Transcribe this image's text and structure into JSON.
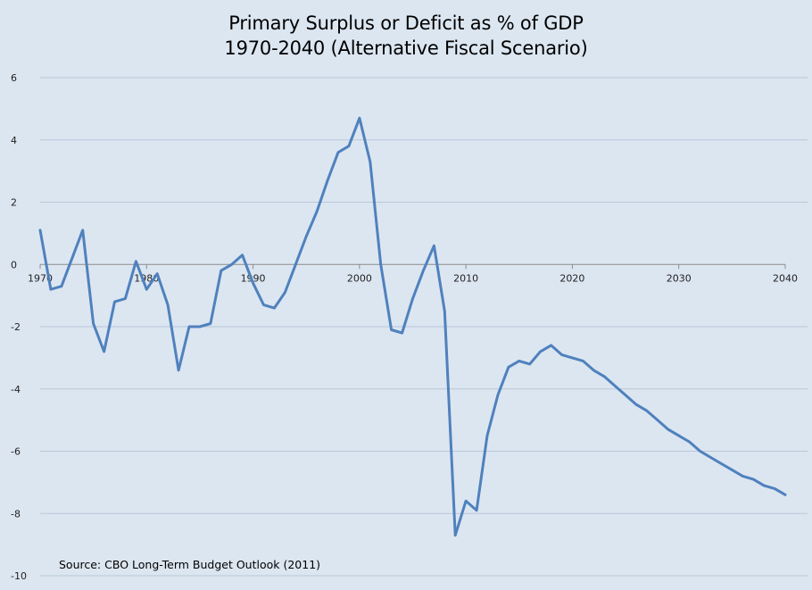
{
  "chart": {
    "title_line1": "Primary Surplus or Deficit as % of GDP",
    "title_line2": "1970-2040 (Alternative Fiscal Scenario)",
    "source": "Source:  CBO Long-Term Budget Outlook (2011)"
  },
  "colors": {
    "background": "#dce6f1",
    "series": "#4f81bd",
    "grid": "#b9c7d8"
  },
  "chart_data": {
    "type": "line",
    "title": "Primary Surplus or Deficit as % of GDP 1970-2040 (Alternative Fiscal Scenario)",
    "xlabel": "",
    "ylabel": "",
    "xlim": [
      1970,
      2040
    ],
    "ylim": [
      -10,
      6
    ],
    "x_ticks": [
      "1970",
      "1980",
      "1990",
      "2000",
      "2010",
      "2020",
      "2030",
      "2040"
    ],
    "y_ticks": [
      "6",
      "4",
      "2",
      "0",
      "-2",
      "-4",
      "-6",
      "-8",
      "-10"
    ],
    "grid": true,
    "legend": "none",
    "series": [
      {
        "x": [
          1970,
          1971,
          1972,
          1973,
          1974,
          1975,
          1976,
          1977,
          1978,
          1979,
          1980,
          1981,
          1982,
          1983,
          1984,
          1985,
          1986,
          1987,
          1988,
          1989,
          1990,
          1991,
          1992,
          1993,
          1994,
          1995,
          1996,
          1997,
          1998,
          1999,
          2000,
          2001,
          2002,
          2003,
          2004,
          2005,
          2006,
          2007,
          2008,
          2009,
          2010,
          2011,
          2012,
          2013,
          2014,
          2015,
          2016,
          2017,
          2018,
          2019,
          2020,
          2021,
          2022,
          2023,
          2024,
          2025,
          2026,
          2027,
          2028,
          2029,
          2030,
          2031,
          2032,
          2033,
          2034,
          2035,
          2036,
          2037,
          2038,
          2039,
          2040
        ],
        "values": [
          1.1,
          -0.8,
          -0.7,
          0.2,
          1.1,
          -1.9,
          -2.8,
          -1.2,
          -1.1,
          0.1,
          -0.8,
          -0.3,
          -1.3,
          -3.4,
          -2.0,
          -2.0,
          -1.9,
          -0.2,
          0.0,
          0.3,
          -0.6,
          -1.3,
          -1.4,
          -0.9,
          0.0,
          0.9,
          1.7,
          2.7,
          3.6,
          3.8,
          4.7,
          3.3,
          0.0,
          -2.1,
          -2.2,
          -1.1,
          -0.2,
          0.6,
          -1.5,
          -8.7,
          -7.6,
          -7.9,
          -5.5,
          -4.2,
          -3.3,
          -3.1,
          -3.2,
          -2.8,
          -2.6,
          -2.9,
          -3.0,
          -3.1,
          -3.4,
          -3.6,
          -3.9,
          -4.2,
          -4.5,
          -4.7,
          -5.0,
          -5.3,
          -5.5,
          -5.7,
          -6.0,
          -6.2,
          -6.4,
          -6.6,
          -6.8,
          -6.9,
          -7.1,
          -7.2,
          -7.4
        ]
      }
    ]
  }
}
